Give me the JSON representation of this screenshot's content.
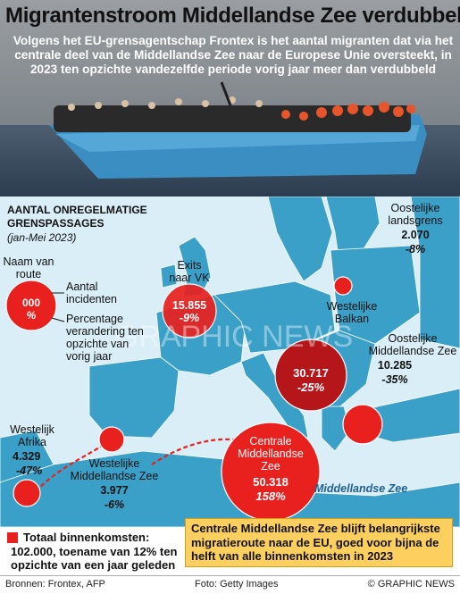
{
  "header": {
    "title": "Migrantenstroom Middellandse Zee verdubbeld",
    "subtitle": "Volgens het EU-grensagentschap Frontex is het aantal migranten dat via het centrale deel van de Middellandse Zee naar de Europese Unie oversteekt, in 2023 ten opzichte vandezelfde periode vorig jaar meer dan verdubbeld"
  },
  "map": {
    "heading_line1": "AANTAL ONREGELMATIGE",
    "heading_line2": "GRENSPASSAGES",
    "period": "(jan-Mei 2023)",
    "sea_label": "Middellandse Zee",
    "watermark": "GRAPHIC NEWS",
    "colors": {
      "sea": "#d9eef7",
      "land": "#3aa0c8",
      "marker": "#e8211f",
      "marker_dark": "#b5161a",
      "callout": "#fccf5e"
    }
  },
  "legend": {
    "name_label_line1": "Naam van",
    "name_label_line2": "route",
    "sample_value": "000",
    "sample_pct": "%",
    "incidents_line1": "Aantal",
    "incidents_line2": "incidenten",
    "pct_line1": "Percentage",
    "pct_line2": "verandering ten",
    "pct_line3": "opzichte van",
    "pct_line4": "vorig jaar"
  },
  "routes": {
    "oost_land": {
      "name_line1": "Oostelijke",
      "name_line2": "landsgrens",
      "value": "2.070",
      "change": "-8%"
    },
    "exits_vk": {
      "name_line1": "Exits",
      "name_line2": "naar VK",
      "value": "15.855",
      "change": "-9%"
    },
    "west_balkan": {
      "name_line1": "Westelijke",
      "name_line2": "Balkan",
      "value": "30.717",
      "change": "-25%"
    },
    "oost_med": {
      "name_line1": "Oostelijke",
      "name_line2": "Middellandse Zee",
      "value": "10.285",
      "change": "-35%"
    },
    "west_afrika": {
      "name_line1": "Westelijk",
      "name_line2": "Afrika",
      "value": "4.329",
      "change": "-47%"
    },
    "west_med": {
      "name_line1": "Westelijke",
      "name_line2": "Middellandse Zee",
      "value": "3.977",
      "change": "-6%"
    },
    "central_med": {
      "name_line1": "Centrale",
      "name_line2": "Middellandse",
      "name_line3": "Zee",
      "value": "50.318",
      "change": "158%"
    }
  },
  "total": {
    "title": "Totaal binnenkomsten:",
    "line1": "102.000, toename van 12% ten",
    "line2": "opzichte van een jaar geleden"
  },
  "callout": {
    "text": "Centrale Middellandse Zee blijft belangrijkste migratieroute naar de EU, goed voor bijna de helft van alle binnenkomsten in 2023"
  },
  "footer": {
    "sources": "Bronnen: Frontex, AFP",
    "photo": "Foto: Getty Images",
    "credit": "© GRAPHIC NEWS"
  }
}
